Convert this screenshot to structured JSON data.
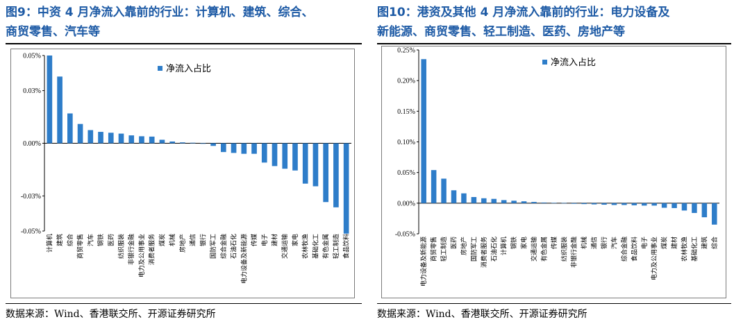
{
  "panels": [
    {
      "title_line1": "图9：中资 4 月净流入靠前的行业：计算机、建筑、综合、",
      "title_line2": "商贸零售、汽车等",
      "source": "数据来源：Wind、香港联交所、开源证券研究所"
    },
    {
      "title_line1": "图10：港资及其他 4 月净流入靠前的行业：电力设备及",
      "title_line2": "新能源、商贸零售、轻工制造、医药、房地产等",
      "source": "数据来源：Wind、香港联交所、开源证券研究所"
    }
  ],
  "colors": {
    "bar": "#2e7dc9",
    "title": "#1d5aa5"
  },
  "chart_data": [
    {
      "type": "bar",
      "title": "图9：中资 4 月净流入靠前的行业：计算机、建筑、综合、商贸零售、汽车等",
      "legend": "净流入占比",
      "legend_position": "top-center",
      "grid": false,
      "ylim": [
        -0.05,
        0.05
      ],
      "yticks": [
        0.05,
        0.03,
        0.0,
        -0.03,
        -0.05
      ],
      "ytick_labels": [
        "0.05%",
        "0.03%",
        "0.00%",
        "-0.03%",
        "-0.05%"
      ],
      "categories": [
        "计算机",
        "建筑",
        "综合",
        "商贸零售",
        "汽车",
        "钢铁",
        "医药",
        "纺织服装",
        "非银行金融",
        "电力及公用事业",
        "消费者服务",
        "煤炭",
        "机械",
        "房地产",
        "通信",
        "银行",
        "国防军工",
        "综合金融",
        "石油石化",
        "电力设备及新能源",
        "传媒",
        "电子",
        "建材",
        "交通运输",
        "家电",
        "农林牧渔",
        "基础化工",
        "有色金属",
        "轻工制造",
        "食品饮料"
      ],
      "values": [
        0.05,
        0.038,
        0.017,
        0.011,
        0.0075,
        0.0065,
        0.006,
        0.0055,
        0.0045,
        0.004,
        0.0038,
        0.002,
        0.001,
        0.0005,
        0.0003,
        -0.0003,
        -0.0015,
        -0.005,
        -0.0055,
        -0.006,
        -0.006,
        -0.011,
        -0.013,
        -0.0145,
        -0.0155,
        -0.023,
        -0.0245,
        -0.0335,
        -0.0365,
        -0.0515
      ]
    },
    {
      "type": "bar",
      "title": "图10：港资及其他 4 月净流入靠前的行业：电力设备及新能源、商贸零售、轻工制造、医药、房地产等",
      "legend": "净流入占比",
      "legend_position": "top-center",
      "grid": false,
      "ylim": [
        -0.05,
        0.25
      ],
      "yticks": [
        0.25,
        0.2,
        0.15,
        0.1,
        0.05,
        0.0,
        -0.05
      ],
      "ytick_labels": [
        "0.25%",
        "0.20%",
        "0.15%",
        "0.10%",
        "0.05%",
        "0.00%",
        "-0.05%"
      ],
      "categories": [
        "电力设备及新能源",
        "商贸零售",
        "轻工制造",
        "医药",
        "房地产",
        "国防军工",
        "消费者服务",
        "石油石化",
        "计算机",
        "钢铁",
        "家电",
        "交通运输",
        "有色金属",
        "传媒",
        "纺织服装",
        "非银行金融",
        "机械",
        "通信",
        "银行",
        "汽车",
        "综合金融",
        "食品饮料",
        "电子",
        "电力及公用事业",
        "煤炭",
        "建材",
        "农林牧渔",
        "基础化工",
        "建筑",
        "综合"
      ],
      "values": [
        0.235,
        0.054,
        0.04,
        0.021,
        0.016,
        0.01,
        0.008,
        0.007,
        0.005,
        0.004,
        0.003,
        0.002,
        0.001,
        0.0005,
        0.0003,
        -0.001,
        -0.0015,
        -0.002,
        -0.0025,
        -0.003,
        -0.003,
        -0.0035,
        -0.004,
        -0.004,
        -0.0075,
        -0.008,
        -0.012,
        -0.016,
        -0.023,
        -0.035
      ]
    }
  ]
}
